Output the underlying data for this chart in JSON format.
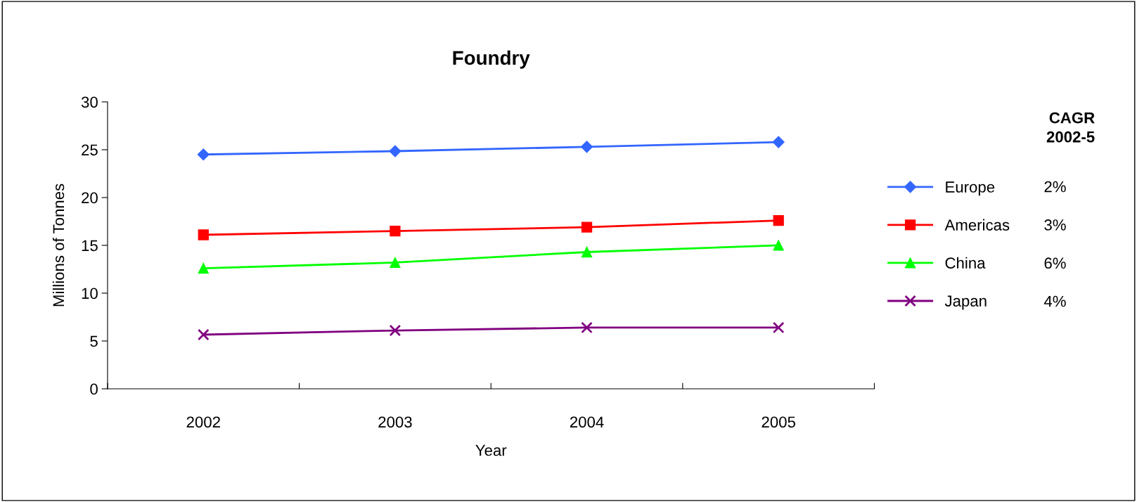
{
  "chart_data": {
    "type": "line",
    "title": "Foundry",
    "xlabel": "Year",
    "ylabel": "Millions of Tonnes",
    "categories": [
      "2002",
      "2003",
      "2004",
      "2005"
    ],
    "series": [
      {
        "name": "Europe",
        "color": "#3366ff",
        "marker": "diamond",
        "values": [
          24.5,
          24.85,
          25.3,
          25.8
        ]
      },
      {
        "name": "Americas",
        "color": "#ff0000",
        "marker": "square",
        "values": [
          16.1,
          16.5,
          16.9,
          17.6
        ]
      },
      {
        "name": "China",
        "color": "#00ff00",
        "marker": "triangle",
        "values": [
          12.6,
          13.2,
          14.3,
          15.0
        ]
      },
      {
        "name": "Japan",
        "color": "#800080",
        "marker": "cross",
        "values": [
          5.66,
          6.1,
          6.4,
          6.4
        ]
      }
    ],
    "ylim": [
      0,
      30
    ],
    "yticks": [
      0,
      5,
      10,
      15,
      20,
      25,
      30
    ],
    "grid": false,
    "legend": "right",
    "line_style": "solid",
    "legend_title": "CAGR\n2002-5",
    "annotations": [
      "2%",
      "3%",
      "6%",
      "4%"
    ]
  }
}
